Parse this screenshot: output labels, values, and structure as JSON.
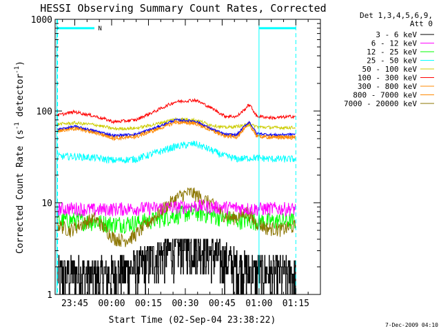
{
  "chart_data": {
    "type": "line",
    "title": "HESSI Observing Summary Count Rates, Corrected",
    "xlabel": "Start Time (02-Sep-04 23:38:22)",
    "ylabel_parts": [
      "Corrected Count Rate (s",
      "-1",
      " detector",
      "-1",
      ")"
    ],
    "yscale": "log",
    "ylim": [
      1,
      1000
    ],
    "xlim_minutes": [
      -8,
      100
    ],
    "x_ticks": [
      {
        "t": 0,
        "label": "23:45"
      },
      {
        "t": 15,
        "label": "00:00"
      },
      {
        "t": 30,
        "label": "00:15"
      },
      {
        "t": 45,
        "label": "00:30"
      },
      {
        "t": 60,
        "label": "00:45"
      },
      {
        "t": 75,
        "label": "01:00"
      },
      {
        "t": 90,
        "label": "01:15"
      }
    ],
    "y_ticks": [
      {
        "v": 1,
        "label": "1"
      },
      {
        "v": 10,
        "label": "10"
      },
      {
        "v": 100,
        "label": "100"
      },
      {
        "v": 1000,
        "label": "1000"
      }
    ],
    "legend_header": [
      "Det 1,3,4,5,6,9,",
      "Att 0"
    ],
    "legend_position": "right",
    "night_markers": {
      "dashed_lines_t": [
        -7,
        90
      ],
      "solid_lines_t": [
        -7.3,
        75
      ],
      "bars": [
        {
          "t0": -7,
          "t1": 8
        },
        {
          "t0": 75,
          "t1": 90
        }
      ],
      "bar_value": 800,
      "label": "N",
      "label_t": 9.5
    },
    "series": [
      {
        "name": "3 - 6 keV",
        "color": "#000000",
        "x": [
          -7,
          0,
          8,
          16,
          25,
          33,
          41,
          49,
          57,
          65,
          73,
          81,
          90
        ],
        "y": [
          1.7,
          1.7,
          1.6,
          1.7,
          2.0,
          2.6,
          3.2,
          3.4,
          2.7,
          2.1,
          1.8,
          1.7,
          1.7
        ]
      },
      {
        "name": "6 - 12 keV",
        "color": "#ff00ff",
        "x": [
          -7,
          0,
          8,
          16,
          25,
          33,
          41,
          49,
          57,
          65,
          73,
          81,
          90
        ],
        "y": [
          8.6,
          8.7,
          8.4,
          8.6,
          8.7,
          8.8,
          9.0,
          9.3,
          9.0,
          8.9,
          8.6,
          8.7,
          8.6
        ]
      },
      {
        "name": "12 - 25 keV",
        "color": "#00ff00",
        "x": [
          -7,
          0,
          8,
          16,
          25,
          33,
          41,
          49,
          57,
          65,
          73,
          81,
          90
        ],
        "y": [
          6.4,
          6.5,
          6.2,
          5.9,
          6.1,
          6.6,
          7.4,
          8.0,
          7.2,
          6.6,
          6.4,
          6.3,
          6.4
        ]
      },
      {
        "name": "25 - 50 keV",
        "color": "#00ffff",
        "x": [
          -7,
          0,
          8,
          16,
          25,
          33,
          41,
          49,
          54,
          60,
          66,
          73,
          81,
          90
        ],
        "y": [
          32,
          32,
          31,
          29,
          30,
          35,
          41,
          44,
          39,
          33,
          30,
          31,
          30,
          30
        ]
      },
      {
        "name": "50 - 100 keV",
        "color": "#cccc00",
        "x": [
          -7,
          0,
          8,
          16,
          25,
          33,
          41,
          49,
          55,
          61,
          66,
          71,
          75,
          81,
          90
        ],
        "y": [
          72,
          74,
          71,
          64,
          65,
          72,
          82,
          80,
          71,
          66,
          68,
          71,
          67,
          66,
          66
        ]
      },
      {
        "name": "100 - 300 keV",
        "color": "#ff0000",
        "x": [
          -7,
          0,
          8,
          16,
          25,
          33,
          41,
          49,
          55,
          61,
          66,
          69,
          71,
          74,
          81,
          90
        ],
        "y": [
          90,
          98,
          88,
          76,
          80,
          100,
          126,
          132,
          110,
          88,
          87,
          103,
          118,
          88,
          84,
          88
        ]
      },
      {
        "name": "300 - 800 keV",
        "color": "#ff8800",
        "x": [
          -7,
          0,
          8,
          16,
          25,
          33,
          41,
          49,
          55,
          61,
          66,
          69,
          71,
          74,
          81,
          90
        ],
        "y": [
          62,
          66,
          60,
          52,
          54,
          64,
          78,
          76,
          64,
          55,
          54,
          66,
          74,
          55,
          53,
          53
        ]
      },
      {
        "name": "800 - 7000 keV",
        "color": "#ff8800",
        "x": [
          -7,
          0,
          8,
          16,
          25,
          33,
          41,
          49,
          55,
          61,
          66,
          69,
          71,
          74,
          81,
          90
        ],
        "y": [
          60,
          64,
          58,
          50,
          52,
          62,
          75,
          73,
          62,
          53,
          52,
          63,
          71,
          53,
          51,
          51
        ]
      },
      {
        "name": "7000 - 20000 keV",
        "color": "#8b7500",
        "x": [
          -7,
          -2,
          3,
          8,
          12,
          16,
          20,
          24,
          28,
          33,
          38,
          43,
          47,
          50,
          55,
          60,
          64,
          67,
          70,
          73,
          78,
          84,
          90
        ],
        "y": [
          5.8,
          5.0,
          5.9,
          6.8,
          5.3,
          4.1,
          3.9,
          4.3,
          5.4,
          7.2,
          9.6,
          12,
          13,
          12,
          10,
          7.6,
          6.8,
          7.2,
          8.0,
          6.3,
          5.3,
          5.1,
          5.6
        ]
      }
    ],
    "blue_overlay": {
      "color": "#0000ff",
      "x": [
        -7,
        0,
        8,
        16,
        25,
        33,
        41,
        49,
        55,
        61,
        66,
        69,
        71,
        74,
        81,
        90
      ],
      "y": [
        63,
        68,
        61,
        54,
        56,
        66,
        80,
        78,
        65,
        56,
        55,
        68,
        76,
        57,
        55,
        56
      ]
    }
  },
  "footer_date": "7-Dec-2009 04:10"
}
